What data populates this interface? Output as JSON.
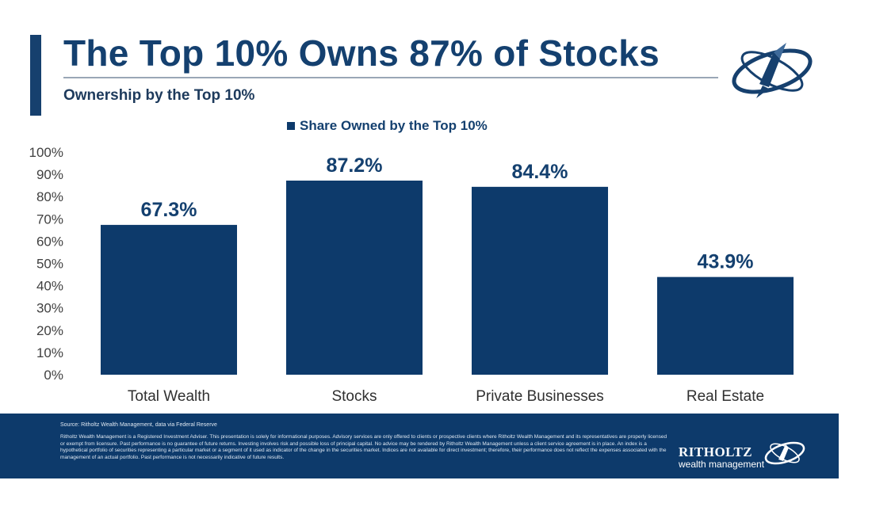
{
  "header": {
    "title": "The Top 10% Owns 87% of Stocks",
    "subtitle": "Ownership by the Top 10%"
  },
  "colors": {
    "bar": "#0d3a6b",
    "label": "#14406f",
    "axis_text": "#404040",
    "footer_bg": "#0d3a6b"
  },
  "chart_data": {
    "type": "bar",
    "title": "",
    "legend": "Share Owned by the Top 10%",
    "legend_position": "top-center",
    "categories": [
      "Total Wealth",
      "Stocks",
      "Private Businesses",
      "Real Estate"
    ],
    "values": [
      67.3,
      87.2,
      84.4,
      43.9
    ],
    "value_labels": [
      "67.3%",
      "87.2%",
      "84.4%",
      "43.9%"
    ],
    "yticks": [
      "0%",
      "10%",
      "20%",
      "30%",
      "40%",
      "50%",
      "60%",
      "70%",
      "80%",
      "90%",
      "100%"
    ],
    "ylim": [
      0,
      100
    ],
    "xlabel": "",
    "ylabel": "",
    "grid": false
  },
  "footer": {
    "source": "Source: Ritholtz Wealth Management, data via Federal Reserve",
    "disclaimer": "Ritholtz Wealth Management is a Registered Investment Adviser. This presentation is solely for informational purposes. Advisory services are only offered to clients or prospective clients where Ritholtz Wealth Management and its representatives are properly licensed or exempt from licensure. Past performance is no guarantee of future returns. Investing involves risk and possible loss of principal capital. No advice may be rendered by Ritholtz Wealth Management unless a client service agreement is in place. An index is a hypothetical portfolio of securities representing a particular market or a segment of it used as indicator of the change in the securities market. Indices are not available for direct investment; therefore, their performance does not reflect the expenses associated with the management of an actual portfolio. Past performance is not necessarily indicative of future results.",
    "brand_name": "RITHOLTZ",
    "brand_sub": "wealth management"
  }
}
